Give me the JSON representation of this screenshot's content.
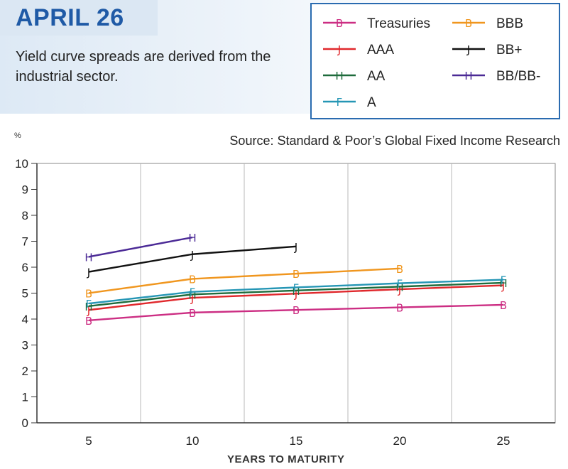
{
  "header": {
    "title": "APRIL 26",
    "subtitle": "Yield curve spreads are derived from the industrial sector."
  },
  "source": "Source: Standard & Poor’s Global Fixed Income Research",
  "chart_data": {
    "type": "line",
    "title": "",
    "xlabel": "YEARS TO MATURITY",
    "ylabel": "%",
    "x_ticks": [
      5,
      10,
      15,
      20,
      25
    ],
    "y_ticks": [
      0,
      1,
      2,
      3,
      4,
      5,
      6,
      7,
      8,
      9,
      10
    ],
    "xlim": [
      2.5,
      27.5
    ],
    "ylim": [
      0,
      10
    ],
    "grid": true,
    "legend_position": "top-right",
    "series": [
      {
        "name": "Treasuries",
        "color": "#cc2e83",
        "marker": "B",
        "x": [
          5,
          10,
          15,
          20,
          25
        ],
        "y": [
          3.95,
          4.25,
          4.35,
          4.45,
          4.55
        ]
      },
      {
        "name": "AAA",
        "color": "#e0282c",
        "marker": "J",
        "x": [
          5,
          10,
          15,
          20,
          25
        ],
        "y": [
          4.35,
          4.82,
          4.98,
          5.15,
          5.3
        ]
      },
      {
        "name": "AA",
        "color": "#1e6b3c",
        "marker": "H",
        "x": [
          5,
          10,
          15,
          20,
          25
        ],
        "y": [
          4.5,
          4.95,
          5.1,
          5.25,
          5.4
        ]
      },
      {
        "name": "A",
        "color": "#2596b5",
        "marker": "F",
        "x": [
          5,
          10,
          15,
          20,
          25
        ],
        "y": [
          4.6,
          5.05,
          5.22,
          5.38,
          5.52
        ]
      },
      {
        "name": "BBB",
        "color": "#f0961e",
        "marker": "B",
        "x": [
          5,
          10,
          15,
          20
        ],
        "y": [
          5.0,
          5.55,
          5.75,
          5.95
        ]
      },
      {
        "name": "BB+",
        "color": "#111111",
        "marker": "J",
        "x": [
          5,
          10,
          15
        ],
        "y": [
          5.82,
          6.5,
          6.8
        ]
      },
      {
        "name": "BB/BB-",
        "color": "#4b2a96",
        "marker": "H",
        "x": [
          5,
          10
        ],
        "y": [
          6.4,
          7.15
        ]
      }
    ]
  }
}
